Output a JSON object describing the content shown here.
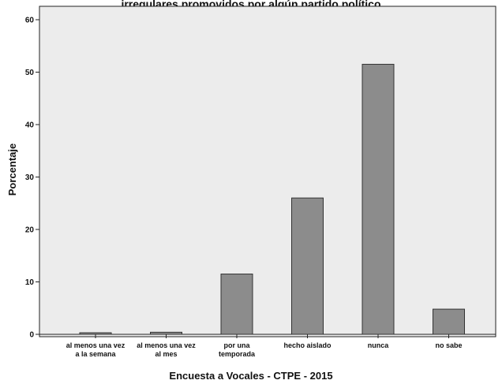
{
  "chart_data": {
    "type": "bar",
    "title": "irregulares promovidos por algún partido político",
    "xlabel": "Encuesta a Vocales - CTPE - 2015",
    "ylabel": "Porcentaje",
    "ylim": [
      0,
      62
    ],
    "yticks": [
      0,
      10,
      20,
      30,
      40,
      50,
      60
    ],
    "categories": [
      [
        "al menos una vez",
        "a la semana"
      ],
      [
        "al menos una vez",
        "al mes"
      ],
      [
        "por una",
        "temporada"
      ],
      [
        "hecho aislado"
      ],
      [
        "nunca"
      ],
      [
        "no sabe"
      ]
    ],
    "values": [
      0.3,
      0.4,
      11.5,
      26.0,
      51.5,
      4.8
    ],
    "bar_color": "#8c8c8c",
    "plot_background": "#ececec",
    "grid": false
  }
}
